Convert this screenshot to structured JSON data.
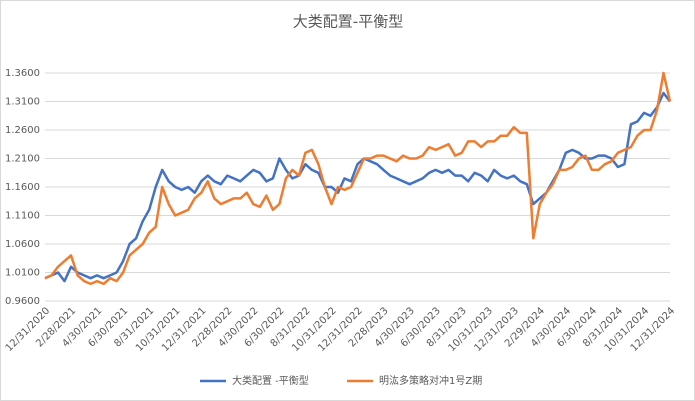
{
  "chart_data": {
    "type": "line",
    "title": "大类配置-平衡型",
    "categories": [
      "12/31/2020",
      null,
      null,
      null,
      "2/28/2021",
      null,
      null,
      null,
      "4/30/2021",
      null,
      null,
      null,
      "6/30/2021",
      null,
      null,
      null,
      "8/31/2021",
      null,
      null,
      null,
      "10/31/2021",
      null,
      null,
      null,
      "12/31/2021",
      null,
      null,
      null,
      "2/28/2022",
      null,
      null,
      null,
      "4/30/2022",
      null,
      null,
      null,
      "6/30/2022",
      null,
      null,
      null,
      "8/31/2022",
      null,
      null,
      null,
      "10/31/2022",
      null,
      null,
      null,
      "12/31/2022",
      null,
      null,
      null,
      "2/28/2023",
      null,
      null,
      null,
      "4/30/2023",
      null,
      null,
      null,
      "6/30/2023",
      null,
      null,
      null,
      "8/31/2023",
      null,
      null,
      null,
      "10/31/2023",
      null,
      null,
      null,
      "12/31/2023",
      null,
      null,
      null,
      "2/29/2024",
      null,
      null,
      null,
      "4/30/2024",
      null,
      null,
      null,
      "6/30/2024",
      null,
      null,
      null,
      "8/31/2024",
      null,
      null,
      null,
      "10/31/2024",
      null,
      null,
      null,
      "12/31/2024"
    ],
    "series": [
      {
        "name": "大类配置 -平衡型",
        "color": "#4472c4",
        "values": [
          1.0,
          1.005,
          1.01,
          0.995,
          1.02,
          1.01,
          1.005,
          1.0,
          1.005,
          1.0,
          1.005,
          1.01,
          1.03,
          1.06,
          1.07,
          1.1,
          1.12,
          1.16,
          1.19,
          1.17,
          1.16,
          1.155,
          1.16,
          1.15,
          1.17,
          1.18,
          1.17,
          1.165,
          1.18,
          1.175,
          1.17,
          1.18,
          1.19,
          1.185,
          1.17,
          1.175,
          1.21,
          1.19,
          1.175,
          1.18,
          1.2,
          1.19,
          1.185,
          1.16,
          1.16,
          1.15,
          1.175,
          1.17,
          1.2,
          1.21,
          1.205,
          1.2,
          1.19,
          1.18,
          1.175,
          1.17,
          1.165,
          1.17,
          1.175,
          1.185,
          1.19,
          1.185,
          1.19,
          1.18,
          1.18,
          1.17,
          1.185,
          1.18,
          1.17,
          1.19,
          1.18,
          1.175,
          1.18,
          1.17,
          1.165,
          1.13,
          1.14,
          1.15,
          1.17,
          1.19,
          1.22,
          1.225,
          1.22,
          1.21,
          1.21,
          1.215,
          1.215,
          1.21,
          1.195,
          1.2,
          1.27,
          1.275,
          1.29,
          1.285,
          1.3,
          1.325,
          1.31
        ]
      },
      {
        "name": "明汯多策略对冲1号Z期",
        "color": "#ed7d31",
        "values": [
          1.0,
          1.005,
          1.02,
          1.03,
          1.04,
          1.005,
          0.995,
          0.99,
          0.995,
          0.99,
          1.0,
          0.995,
          1.01,
          1.04,
          1.05,
          1.06,
          1.08,
          1.09,
          1.16,
          1.13,
          1.11,
          1.115,
          1.12,
          1.14,
          1.15,
          1.17,
          1.14,
          1.13,
          1.135,
          1.14,
          1.14,
          1.15,
          1.13,
          1.125,
          1.145,
          1.12,
          1.13,
          1.175,
          1.19,
          1.18,
          1.22,
          1.225,
          1.2,
          1.16,
          1.13,
          1.16,
          1.155,
          1.16,
          1.185,
          1.21,
          1.21,
          1.215,
          1.215,
          1.21,
          1.205,
          1.215,
          1.21,
          1.21,
          1.215,
          1.23,
          1.225,
          1.23,
          1.235,
          1.215,
          1.22,
          1.24,
          1.24,
          1.23,
          1.24,
          1.24,
          1.25,
          1.25,
          1.265,
          1.255,
          1.255,
          1.07,
          1.13,
          1.15,
          1.165,
          1.19,
          1.19,
          1.195,
          1.21,
          1.215,
          1.19,
          1.19,
          1.2,
          1.205,
          1.22,
          1.225,
          1.23,
          1.25,
          1.26,
          1.26,
          1.295,
          1.36,
          1.31
        ]
      }
    ],
    "ylim": [
      0.96,
      1.36
    ],
    "yticks": [
      {
        "value": 0.96,
        "label": "0.9600"
      },
      {
        "value": 1.01,
        "label": "1.0100"
      },
      {
        "value": 1.06,
        "label": "1.0600"
      },
      {
        "value": 1.11,
        "label": "1.1100"
      },
      {
        "value": 1.16,
        "label": "1.1600"
      },
      {
        "value": 1.21,
        "label": "1.2100"
      },
      {
        "value": 1.26,
        "label": "1.2600"
      },
      {
        "value": 1.31,
        "label": "1.3100"
      },
      {
        "value": 1.36,
        "label": "1.3600"
      }
    ],
    "grid": true
  }
}
